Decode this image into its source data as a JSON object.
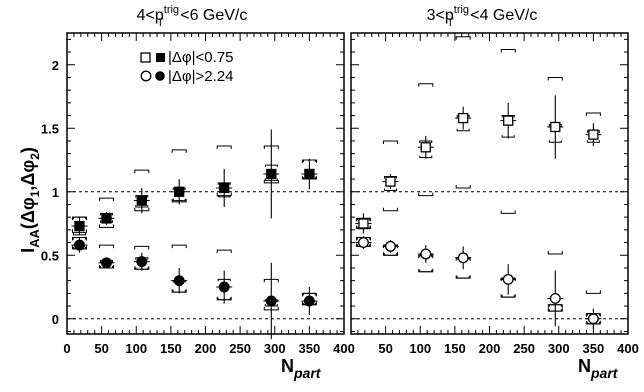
{
  "chart_data": {
    "type": "scatter",
    "ylabel": "I",
    "ylabel_sub": "AA",
    "ylabel_args": "(Δφ",
    "ylabel_arg1_sub": "1",
    "ylabel_mid": ",Δφ",
    "ylabel_arg2_sub": "2",
    "ylabel_close": ")",
    "xlabel": "N",
    "xlabel_sub": "part",
    "ylim": [
      -0.12,
      2.25
    ],
    "xlim": [
      0,
      400
    ],
    "reference_lines": [
      0,
      1
    ],
    "legend": {
      "placement": "top-left of left panel",
      "entries": [
        {
          "marker": "square",
          "prefix": "|Δφ|",
          "text": "<0.75"
        },
        {
          "marker": "circle",
          "prefix": "|Δφ|",
          "text": ">2.24"
        }
      ]
    },
    "panels": [
      {
        "title_prefix": "4<p",
        "title_sup": "trig",
        "title_sub": "T",
        "title_suffix": " <6 GeV/c",
        "x_ticks": [
          0,
          50,
          100,
          150,
          200,
          250,
          300,
          350,
          400
        ],
        "x_tick_labels": [
          "0",
          "50",
          "100",
          "150",
          "200",
          "250",
          "300",
          "350",
          "400"
        ],
        "y_ticks": [
          0,
          0.5,
          1,
          1.5,
          2
        ],
        "y_tick_labels": [
          "0",
          "0.5",
          "1",
          "1.5",
          "2"
        ],
        "marker_fill": "filled",
        "series": [
          {
            "marker": "square",
            "points": [
              {
                "x": 18,
                "y": 0.73,
                "err": 0.07,
                "sys_lo": 0.66,
                "sys_hi": 0.8,
                "norm_lo": 0.68,
                "norm_hi": 0.8
              },
              {
                "x": 57,
                "y": 0.79,
                "err": 0.05,
                "sys_lo": 0.76,
                "sys_hi": 0.83,
                "norm_lo": 0.72,
                "norm_hi": 0.95
              },
              {
                "x": 108,
                "y": 0.93,
                "err": 0.1,
                "sys_lo": 0.88,
                "sys_hi": 0.97,
                "norm_lo": 0.85,
                "norm_hi": 1.17
              },
              {
                "x": 162,
                "y": 1.0,
                "err": 0.1,
                "sys_lo": 0.93,
                "sys_hi": 1.03,
                "norm_lo": 0.92,
                "norm_hi": 1.33
              },
              {
                "x": 227,
                "y": 1.03,
                "err": 0.15,
                "sys_lo": 0.96,
                "sys_hi": 1.07,
                "norm_lo": 0.97,
                "norm_hi": 1.36
              },
              {
                "x": 295,
                "y": 1.14,
                "err": 0.35,
                "sys_lo": 1.09,
                "sys_hi": 1.21,
                "norm_lo": 1.07,
                "norm_hi": 1.36
              },
              {
                "x": 350,
                "y": 1.14,
                "err": 0.12,
                "sys_lo": 1.1,
                "sys_hi": 1.25,
                "norm_lo": 1.1,
                "norm_hi": 1.25
              }
            ]
          },
          {
            "marker": "circle",
            "points": [
              {
                "x": 18,
                "y": 0.58,
                "err": 0.06,
                "sys_lo": 0.55,
                "sys_hi": 0.64,
                "norm_lo": 0.55,
                "norm_hi": 0.64
              },
              {
                "x": 57,
                "y": 0.44,
                "err": 0.04,
                "sys_lo": 0.4,
                "sys_hi": 0.46,
                "norm_lo": 0.4,
                "norm_hi": 0.58
              },
              {
                "x": 108,
                "y": 0.45,
                "err": 0.07,
                "sys_lo": 0.39,
                "sys_hi": 0.48,
                "norm_lo": 0.39,
                "norm_hi": 0.57
              },
              {
                "x": 162,
                "y": 0.3,
                "err": 0.1,
                "sys_lo": 0.21,
                "sys_hi": 0.3,
                "norm_lo": 0.21,
                "norm_hi": 0.58
              },
              {
                "x": 227,
                "y": 0.25,
                "err": 0.13,
                "sys_lo": 0.15,
                "sys_hi": 0.31,
                "norm_lo": 0.15,
                "norm_hi": 0.54
              },
              {
                "x": 295,
                "y": 0.14,
                "err": 0.3,
                "sys_lo": 0.1,
                "sys_hi": 0.15,
                "norm_lo": 0.07,
                "norm_hi": 0.31
              },
              {
                "x": 350,
                "y": 0.14,
                "err": 0.11,
                "sys_lo": 0.11,
                "sys_hi": 0.2,
                "norm_lo": 0.11,
                "norm_hi": 0.2
              }
            ]
          }
        ]
      },
      {
        "title_prefix": "3<p",
        "title_sup": "trig",
        "title_sub": "T",
        "title_suffix": " <4 GeV/c",
        "x_ticks": [
          50,
          100,
          150,
          200,
          250,
          300,
          350,
          400
        ],
        "x_tick_labels": [
          "50",
          "100",
          "150",
          "200",
          "250",
          "300",
          "350",
          "400"
        ],
        "marker_fill": "open",
        "series": [
          {
            "marker": "square",
            "points": [
              {
                "x": 18,
                "y": 0.75,
                "err": 0.08,
                "sys_lo": 0.71,
                "sys_hi": 0.79,
                "norm_lo": 0.71,
                "norm_hi": 0.79
              },
              {
                "x": 57,
                "y": 1.08,
                "err": 0.06,
                "sys_lo": 1.01,
                "sys_hi": 1.12,
                "norm_lo": 0.85,
                "norm_hi": 1.4
              },
              {
                "x": 108,
                "y": 1.35,
                "err": 0.09,
                "sys_lo": 1.27,
                "sys_hi": 1.4,
                "norm_lo": 0.97,
                "norm_hi": 1.85
              },
              {
                "x": 162,
                "y": 1.58,
                "err": 0.09,
                "sys_lo": 1.48,
                "sys_hi": 1.6,
                "norm_lo": 1.03,
                "norm_hi": 2.22
              },
              {
                "x": 227,
                "y": 1.56,
                "err": 0.14,
                "sys_lo": 1.43,
                "sys_hi": 1.6,
                "norm_lo": 0.83,
                "norm_hi": 2.12
              },
              {
                "x": 295,
                "y": 1.51,
                "err": 0.25,
                "sys_lo": 1.39,
                "sys_hi": 1.53,
                "norm_lo": 0.51,
                "norm_hi": 1.9
              },
              {
                "x": 350,
                "y": 1.45,
                "err": 0.09,
                "sys_lo": 1.39,
                "sys_hi": 1.48,
                "norm_lo": 0.2,
                "norm_hi": 1.62
              }
            ]
          },
          {
            "marker": "circle",
            "points": [
              {
                "x": 18,
                "y": 0.6,
                "err": 0.05,
                "sys_lo": 0.57,
                "sys_hi": 0.64,
                "norm_lo": 0.57,
                "norm_hi": 0.64
              },
              {
                "x": 57,
                "y": 0.57,
                "err": 0.05,
                "sys_lo": 0.5,
                "sys_hi": 0.58,
                "norm_lo": 0.5,
                "norm_hi": 0.58
              },
              {
                "x": 108,
                "y": 0.51,
                "err": 0.07,
                "sys_lo": 0.37,
                "sys_hi": 0.5,
                "norm_lo": 0.37,
                "norm_hi": 0.5
              },
              {
                "x": 162,
                "y": 0.48,
                "err": 0.09,
                "sys_lo": 0.32,
                "sys_hi": 0.48,
                "norm_lo": 0.32,
                "norm_hi": 0.48
              },
              {
                "x": 227,
                "y": 0.31,
                "err": 0.12,
                "sys_lo": 0.17,
                "sys_hi": 0.32,
                "norm_lo": 0.17,
                "norm_hi": 0.32
              },
              {
                "x": 295,
                "y": 0.16,
                "err": 0.22,
                "sys_lo": 0.06,
                "sys_hi": 0.11,
                "norm_lo": 0.06,
                "norm_hi": 0.11
              },
              {
                "x": 350,
                "y": 0.0,
                "err": 0.08,
                "sys_lo": -0.04,
                "sys_hi": 0.04,
                "norm_lo": -0.04,
                "norm_hi": 0.04
              }
            ]
          }
        ]
      }
    ]
  }
}
